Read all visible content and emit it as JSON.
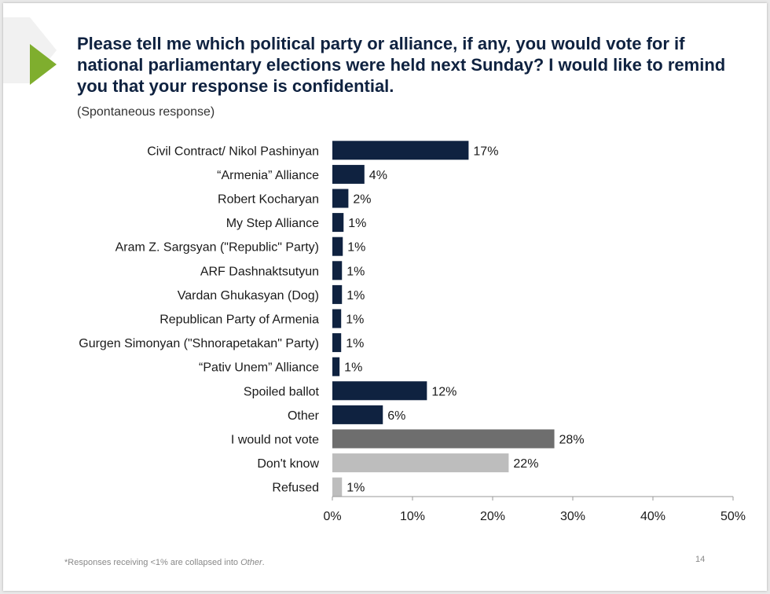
{
  "slide": {
    "title": "Please tell me which political party or alliance, if any, you would vote for if national parliamentary elections were held next Sunday? I would like to remind you that your response is confidential.",
    "subtitle": "(Spontaneous response)",
    "footnote_text": "*Responses receiving <1% are collapsed into ",
    "footnote_other": "Other",
    "footnote_end": ".",
    "page_number": "14"
  },
  "colors": {
    "title": "#0f2240",
    "navy": "#0f2240",
    "dark_gray": "#6e6e6e",
    "light_gray": "#bdbdbd",
    "accent_green": "#7fae2e"
  },
  "icons": [
    "triangle-arrow-icon"
  ],
  "chart_data": {
    "type": "bar",
    "orientation": "horizontal",
    "categories": [
      "Civil Contract/ Nikol Pashinyan",
      "“Armenia” Alliance",
      "Robert Kocharyan",
      "My Step Alliance",
      "Aram Z. Sargsyan (\"Republic\" Party)",
      "ARF Dashnaktsutyun",
      "Vardan Ghukasyan (Dog)",
      "Republican Party of Armenia",
      "Gurgen Simonyan (\"Shnorapetakan\" Party)",
      "“Pativ Unem” Alliance",
      "Spoiled ballot",
      "Other",
      "I would not vote",
      "Don't know",
      "Refused"
    ],
    "values": [
      17,
      4,
      2,
      1.4,
      1.3,
      1.2,
      1.2,
      1.1,
      1.1,
      0.9,
      11.8,
      6.3,
      27.7,
      22,
      1.2
    ],
    "labels": [
      "17%",
      "4%",
      "2%",
      "1%",
      "1%",
      "1%",
      "1%",
      "1%",
      "1%",
      "1%",
      "12%",
      "6%",
      "28%",
      "22%",
      "1%"
    ],
    "bar_colors": [
      "#0f2240",
      "#0f2240",
      "#0f2240",
      "#0f2240",
      "#0f2240",
      "#0f2240",
      "#0f2240",
      "#0f2240",
      "#0f2240",
      "#0f2240",
      "#0f2240",
      "#0f2240",
      "#6e6e6e",
      "#bdbdbd",
      "#bdbdbd"
    ],
    "xlim": [
      0,
      50
    ],
    "xticks": [
      "0%",
      "10%",
      "20%",
      "30%",
      "40%",
      "50%"
    ],
    "grid": false
  }
}
